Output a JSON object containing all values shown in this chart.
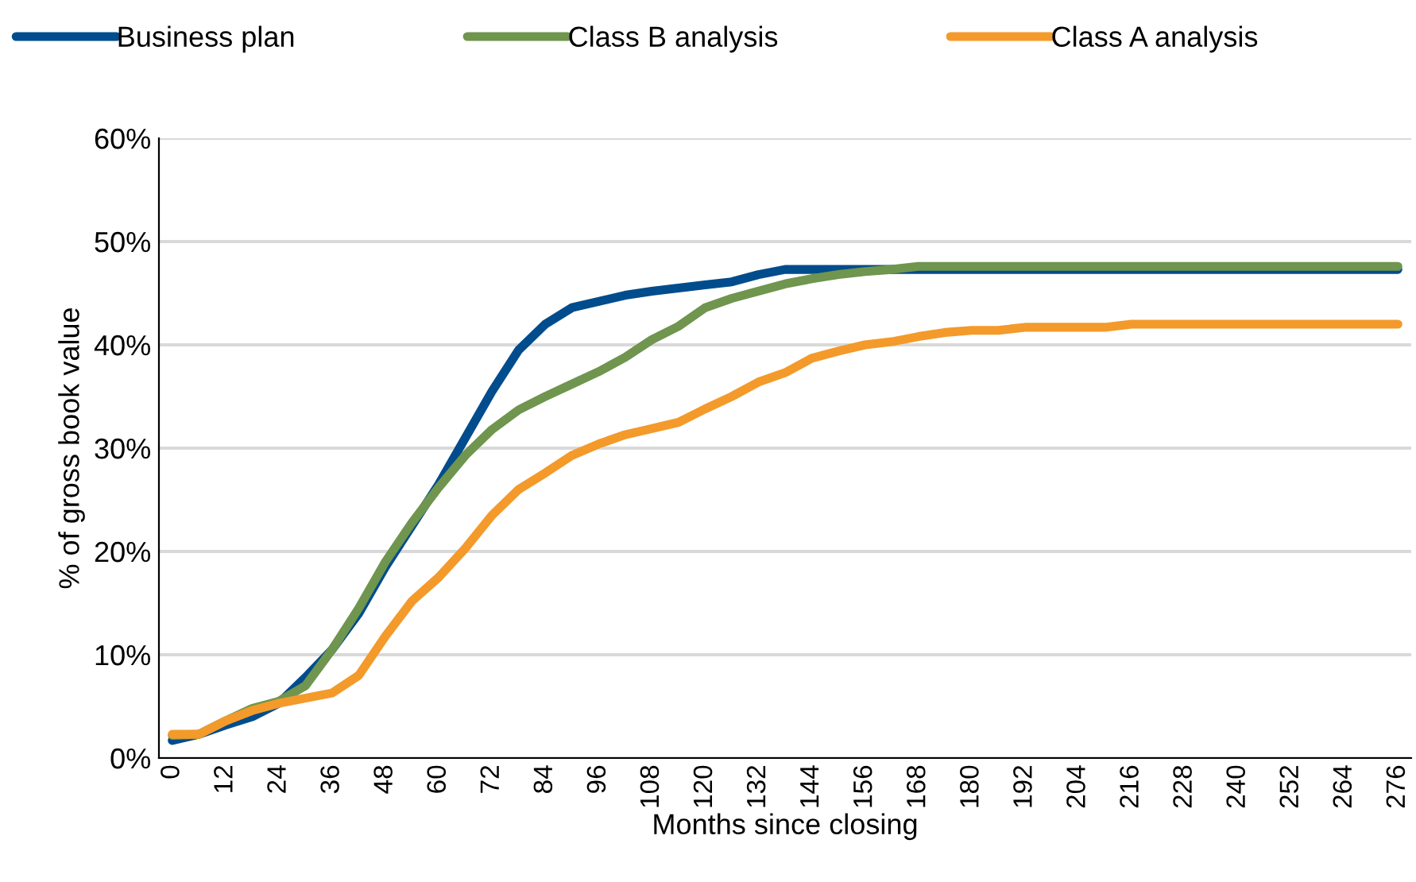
{
  "chart_data": {
    "type": "line",
    "xlabel": "Months since closing",
    "ylabel": "% of gross book value",
    "x": [
      0,
      6,
      12,
      18,
      24,
      30,
      36,
      42,
      48,
      54,
      60,
      66,
      72,
      78,
      84,
      90,
      96,
      102,
      108,
      114,
      120,
      126,
      132,
      138,
      144,
      150,
      156,
      162,
      168,
      174,
      180,
      186,
      192,
      198,
      204,
      210,
      216,
      222,
      228,
      234,
      240,
      246,
      252,
      258,
      264,
      270,
      276
    ],
    "xlim": [
      -3,
      279
    ],
    "xticks": [
      0,
      12,
      24,
      36,
      48,
      60,
      72,
      84,
      96,
      108,
      120,
      132,
      144,
      156,
      168,
      180,
      192,
      204,
      216,
      228,
      240,
      252,
      264,
      276
    ],
    "ylim": [
      0,
      60
    ],
    "yticks": [
      {
        "value": 0,
        "label": "0%"
      },
      {
        "value": 10,
        "label": "10%"
      },
      {
        "value": 20,
        "label": "20%"
      },
      {
        "value": 30,
        "label": "30%"
      },
      {
        "value": 40,
        "label": "40%"
      },
      {
        "value": 50,
        "label": "50%"
      },
      {
        "value": 60,
        "label": "60%"
      }
    ],
    "grid": "y",
    "legend": "top",
    "marker": "none",
    "line_style": "solid",
    "series": [
      {
        "name": "Business plan",
        "color": "#004c8c",
        "values": [
          1.7,
          2.3,
          3.2,
          4.0,
          5.3,
          7.8,
          10.5,
          14,
          18.5,
          22.5,
          26.5,
          31,
          35.5,
          39.5,
          42,
          43.6,
          44.2,
          44.8,
          45.2,
          45.5,
          45.8,
          46.1,
          46.8,
          47.3,
          47.3,
          47.3,
          47.3,
          47.3,
          47.3,
          47.3,
          47.3,
          47.3,
          47.3,
          47.3,
          47.3,
          47.3,
          47.3,
          47.3,
          47.3,
          47.3,
          47.3,
          47.3,
          47.3,
          47.3,
          47.3,
          47.3,
          47.3
        ]
      },
      {
        "name": "Class B analysis",
        "color": "#6f954e",
        "values": [
          2.2,
          2.3,
          3.6,
          4.8,
          5.5,
          7.0,
          10.5,
          14.5,
          19,
          22.8,
          26.2,
          29.3,
          31.8,
          33.7,
          35.0,
          36.2,
          37.4,
          38.8,
          40.5,
          41.8,
          43.6,
          44.5,
          45.2,
          45.9,
          46.4,
          46.8,
          47.1,
          47.3,
          47.6,
          47.6,
          47.6,
          47.6,
          47.6,
          47.6,
          47.6,
          47.6,
          47.6,
          47.6,
          47.6,
          47.6,
          47.6,
          47.6,
          47.6,
          47.6,
          47.6,
          47.6,
          47.6
        ]
      },
      {
        "name": "Class A analysis",
        "color": "#f39a2b",
        "values": [
          2.3,
          2.3,
          3.6,
          4.6,
          5.3,
          5.8,
          6.3,
          8.0,
          11.8,
          15.2,
          17.5,
          20.3,
          23.5,
          26.0,
          27.6,
          29.3,
          30.4,
          31.3,
          31.9,
          32.5,
          33.8,
          35.0,
          36.4,
          37.3,
          38.7,
          39.4,
          40.0,
          40.3,
          40.8,
          41.2,
          41.4,
          41.4,
          41.7,
          41.7,
          41.7,
          41.7,
          42.0,
          42.0,
          42.0,
          42.0,
          42.0,
          42.0,
          42.0,
          42.0,
          42.0,
          42.0,
          42.0
        ]
      }
    ]
  }
}
